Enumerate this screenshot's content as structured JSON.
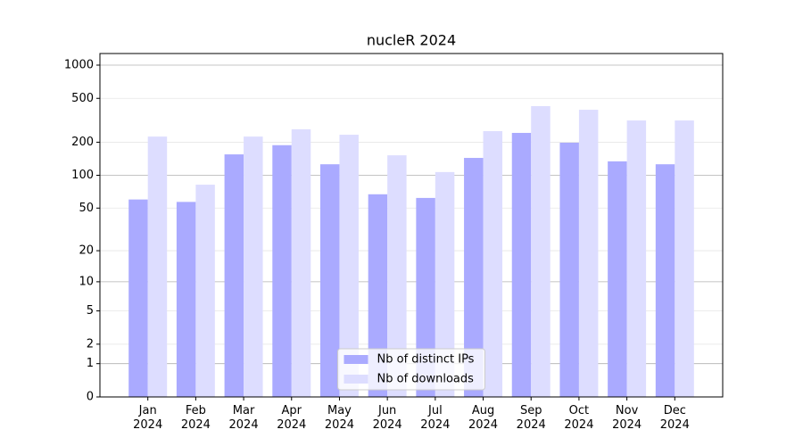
{
  "chart_data": {
    "type": "bar",
    "title": "nucleR 2024",
    "categories": [
      "Jan\n2024",
      "Feb\n2024",
      "Mar\n2024",
      "Apr\n2024",
      "May\n2024",
      "Jun\n2024",
      "Jul\n2024",
      "Aug\n2024",
      "Sep\n2024",
      "Oct\n2024",
      "Nov\n2024",
      "Dec\n2024"
    ],
    "series": [
      {
        "name": "Nb of distinct IPs",
        "color": "#aaaaff",
        "values": [
          60,
          57,
          155,
          188,
          126,
          67,
          62,
          144,
          243,
          198,
          134,
          126
        ]
      },
      {
        "name": "Nb of downloads",
        "color": "#ddddff",
        "values": [
          225,
          82,
          225,
          262,
          234,
          152,
          107,
          252,
          425,
          394,
          315,
          315
        ]
      }
    ],
    "scale": "log1p",
    "ylim": [
      0,
      1273
    ],
    "yticks": [
      0,
      1,
      2,
      5,
      10,
      20,
      50,
      100,
      200,
      500,
      1000
    ],
    "grid": true,
    "legend": "lower center"
  }
}
